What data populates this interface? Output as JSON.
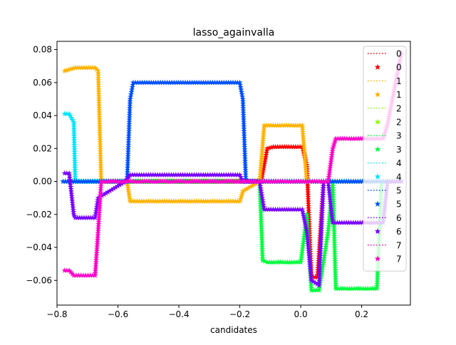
{
  "chart_data": {
    "type": "line",
    "title": "lasso_againvalla",
    "xlabel": "candidates",
    "ylabel": "",
    "xlim": [
      -0.8,
      0.36
    ],
    "ylim": [
      -0.075,
      0.085
    ],
    "xticks": [
      -0.8,
      -0.6,
      -0.4,
      -0.2,
      0.0,
      0.2
    ],
    "xtick_labels": [
      "−0.8",
      "−0.6",
      "−0.4",
      "−0.2",
      "0.0",
      "0.2"
    ],
    "yticks": [
      -0.06,
      -0.04,
      -0.02,
      0.0,
      0.02,
      0.04,
      0.06,
      0.08
    ],
    "ytick_labels": [
      "−0.06",
      "−0.04",
      "−0.02",
      "0.00",
      "0.02",
      "0.04",
      "0.06",
      "0.08"
    ],
    "legend_position": "top-right",
    "legend_entries": [
      {
        "label": "0",
        "style": "dotted-line",
        "color": "#ff0000"
      },
      {
        "label": "0",
        "style": "star",
        "color": "#ff0000"
      },
      {
        "label": "1",
        "style": "dotted-line",
        "color": "#ffb300"
      },
      {
        "label": "1",
        "style": "star",
        "color": "#ffb300"
      },
      {
        "label": "2",
        "style": "dotted-line",
        "color": "#8cff00"
      },
      {
        "label": "2",
        "style": "star",
        "color": "#8cff00"
      },
      {
        "label": "3",
        "style": "dotted-line",
        "color": "#00ff3c"
      },
      {
        "label": "3",
        "style": "star",
        "color": "#00ff3c"
      },
      {
        "label": "4",
        "style": "dotted-line",
        "color": "#00e6ff"
      },
      {
        "label": "4",
        "style": "star",
        "color": "#00e6ff"
      },
      {
        "label": "5",
        "style": "dotted-line",
        "color": "#0050ff"
      },
      {
        "label": "5",
        "style": "star",
        "color": "#0050ff"
      },
      {
        "label": "6",
        "style": "dotted-line",
        "color": "#7800ff"
      },
      {
        "label": "6",
        "style": "star",
        "color": "#7800ff"
      },
      {
        "label": "7",
        "style": "dotted-line",
        "color": "#ff00c8"
      },
      {
        "label": "7",
        "style": "star",
        "color": "#ff00c8"
      }
    ],
    "series": [
      {
        "name": "0",
        "color": "#ff0000",
        "x": [
          -0.78,
          -0.13,
          -0.11,
          -0.09,
          0.005,
          0.02,
          0.035,
          0.055,
          0.075,
          0.12,
          0.33
        ],
        "y": [
          0,
          0,
          0.02,
          0.021,
          0.021,
          0.01,
          -0.058,
          -0.058,
          0.0,
          0.0,
          0.0
        ]
      },
      {
        "name": "1",
        "color": "#ffb300",
        "x": [
          -0.775,
          -0.74,
          -0.675,
          -0.665,
          -0.655,
          -0.57,
          -0.56,
          -0.2,
          -0.19,
          -0.135,
          -0.12,
          0.005,
          0.02,
          0.03,
          0.12,
          0.33
        ],
        "y": [
          0.067,
          0.069,
          0.069,
          0.067,
          0.0,
          0.0,
          -0.012,
          -0.012,
          -0.006,
          0.0,
          0.034,
          0.034,
          0.0,
          0.0,
          0.0,
          0.0
        ]
      },
      {
        "name": "2",
        "color": "#8cff00",
        "x": [
          -0.78,
          0.33
        ],
        "y": [
          0.0,
          0.0
        ]
      },
      {
        "name": "3",
        "color": "#00ff3c",
        "x": [
          -0.78,
          -0.135,
          -0.125,
          -0.11,
          0.0,
          0.02,
          0.035,
          0.06,
          0.09,
          0.105,
          0.115,
          0.25,
          0.265,
          0.33
        ],
        "y": [
          0.0,
          0.0,
          -0.048,
          -0.049,
          -0.049,
          -0.02,
          -0.066,
          -0.066,
          -0.03,
          0.0,
          -0.065,
          -0.065,
          0.0,
          0.0
        ]
      },
      {
        "name": "4",
        "color": "#00e6ff",
        "x": [
          -0.775,
          -0.76,
          -0.745,
          -0.74,
          -0.73,
          0.33
        ],
        "y": [
          0.041,
          0.041,
          0.036,
          0.0,
          0.0,
          0.0
        ]
      },
      {
        "name": "5",
        "color": "#0050ff",
        "x": [
          -0.78,
          -0.57,
          -0.56,
          -0.55,
          -0.2,
          -0.19,
          -0.18,
          0.33
        ],
        "y": [
          0.0,
          0.0,
          0.05,
          0.06,
          0.06,
          0.05,
          0.0,
          0.0
        ]
      },
      {
        "name": "6",
        "color": "#7800ff",
        "x": [
          -0.775,
          -0.76,
          -0.745,
          -0.74,
          -0.675,
          -0.665,
          -0.575,
          -0.56,
          -0.2,
          -0.19,
          -0.135,
          -0.12,
          0.005,
          0.02,
          0.035,
          0.06,
          0.075,
          0.09,
          0.105,
          0.12,
          0.27,
          0.285,
          0.33
        ],
        "y": [
          0.005,
          0.005,
          -0.02,
          -0.022,
          -0.022,
          -0.01,
          0.0,
          0.004,
          0.004,
          0.0,
          0.0,
          -0.017,
          -0.017,
          -0.03,
          -0.06,
          -0.063,
          0.0,
          0.0,
          -0.025,
          -0.025,
          -0.025,
          0.0,
          0.0
        ]
      },
      {
        "name": "7",
        "color": "#ff00c8",
        "x": [
          -0.775,
          -0.76,
          -0.745,
          -0.675,
          -0.665,
          -0.655,
          0.09,
          0.105,
          0.115,
          0.27,
          0.285,
          0.33
        ],
        "y": [
          -0.054,
          -0.054,
          -0.057,
          -0.057,
          -0.03,
          0.0,
          0.0,
          0.02,
          0.026,
          0.026,
          0.035,
          0.078
        ]
      }
    ]
  }
}
